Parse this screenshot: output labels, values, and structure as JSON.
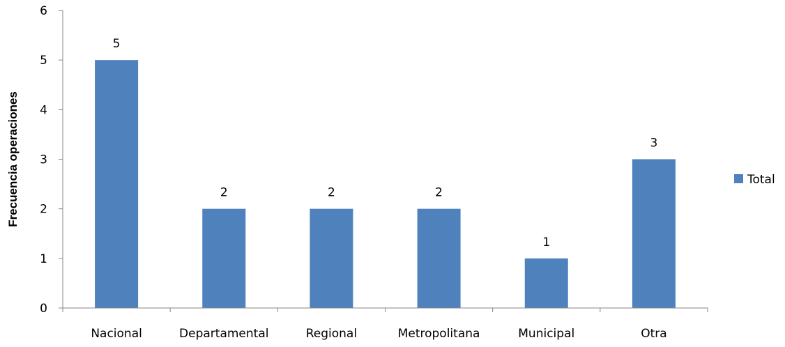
{
  "chart_data": {
    "type": "bar",
    "categories": [
      "Nacional",
      "Departamental",
      "Regional",
      "Metropolitana",
      "Municipal",
      "Otra"
    ],
    "series": [
      {
        "name": "Total",
        "values": [
          5,
          2,
          2,
          2,
          1,
          3
        ],
        "color": "#4f81bd"
      }
    ],
    "title": "",
    "xlabel": "",
    "ylabel": "Frecuencia operaciones",
    "ylim": [
      0,
      6
    ],
    "yticks": [
      "0",
      "1",
      "2",
      "3",
      "4",
      "5",
      "6"
    ],
    "data_labels": [
      "5",
      "2",
      "2",
      "2",
      "1",
      "3"
    ],
    "grid": false,
    "legend": {
      "position": "right",
      "entries": [
        "Total"
      ]
    }
  }
}
